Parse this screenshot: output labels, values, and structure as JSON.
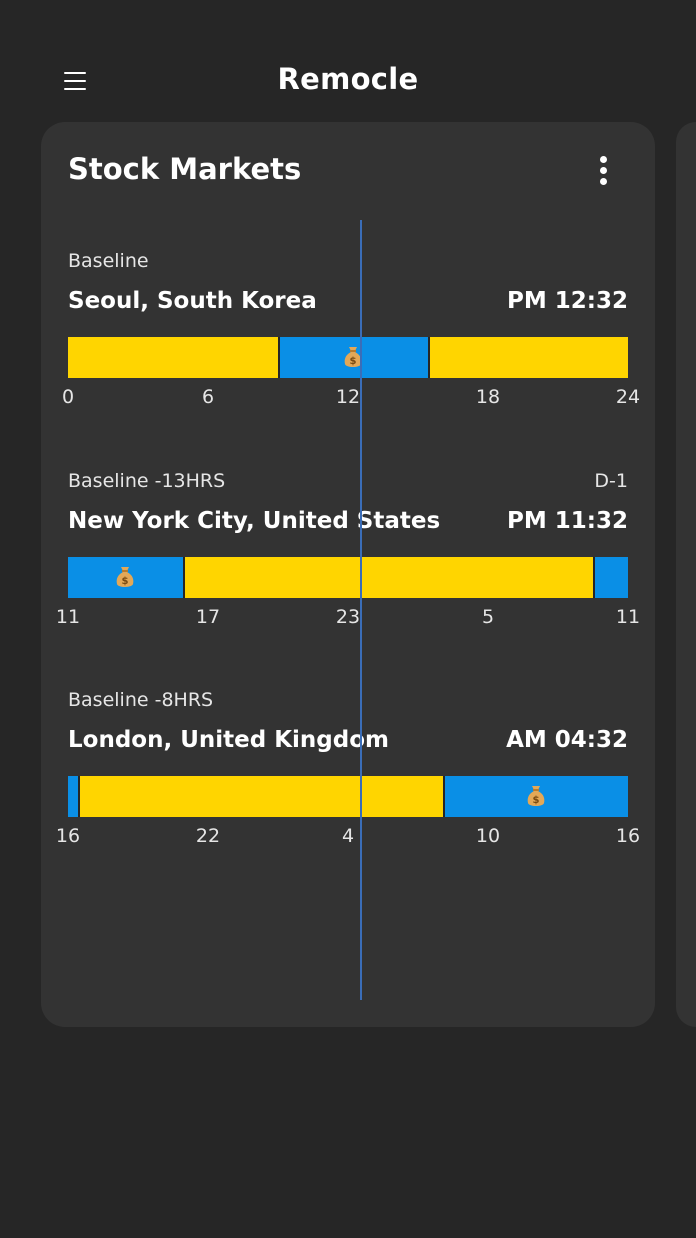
{
  "app": {
    "title": "Remocle",
    "menu_icon": "hamburger-menu-icon"
  },
  "card": {
    "title": "Stock Markets",
    "more_icon": "more-vertical-icon"
  },
  "colors": {
    "background": "#262626",
    "card": "#333333",
    "market_closed": "#FFD500",
    "market_open": "#0A8FE6",
    "baseline_marker": "#3A6DB8"
  },
  "markets": [
    {
      "offset_label": "Baseline",
      "day_label": "",
      "city": "Seoul, South Korea",
      "local_time": "PM 12:32",
      "ticks": [
        "0",
        "6",
        "12",
        "18",
        "24"
      ]
    },
    {
      "offset_label": "Baseline -13HRS",
      "day_label": "D-1",
      "city": "New York City, United States",
      "local_time": "PM 11:32",
      "ticks": [
        "11",
        "17",
        "23",
        "5",
        "11"
      ]
    },
    {
      "offset_label": "Baseline -8HRS",
      "day_label": "",
      "city": "London, United Kingdom",
      "local_time": "AM 04:32",
      "ticks": [
        "16",
        "22",
        "4",
        "10",
        "16"
      ]
    }
  ]
}
